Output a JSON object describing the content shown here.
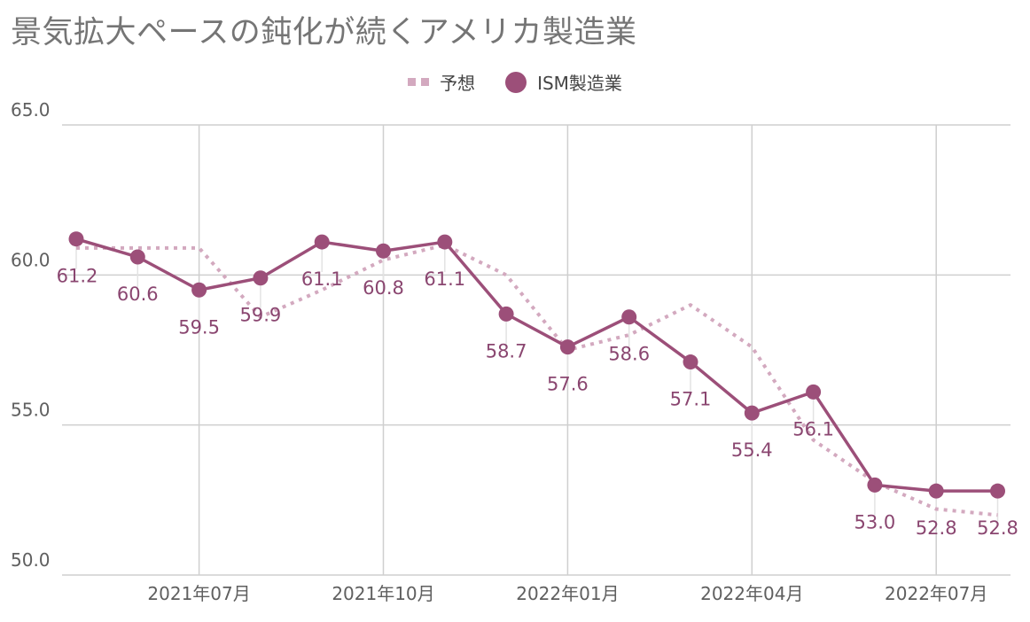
{
  "chart_data": {
    "type": "line",
    "title": "景気拡大ペースの鈍化が続くアメリカ製造業",
    "x": [
      "2021-05",
      "2021-06",
      "2021-07",
      "2021-08",
      "2021-09",
      "2021-10",
      "2021-11",
      "2021-12",
      "2022-01",
      "2022-02",
      "2022-03",
      "2022-04",
      "2022-05",
      "2022-06",
      "2022-07",
      "2022-08"
    ],
    "x_tick_labels": [
      {
        "x": "2021-07",
        "label": "2021年07月"
      },
      {
        "x": "2021-10",
        "label": "2021年10月"
      },
      {
        "x": "2022-01",
        "label": "2022年01月"
      },
      {
        "x": "2022-04",
        "label": "2022年04月"
      },
      {
        "x": "2022-07",
        "label": "2022年07月"
      }
    ],
    "y_ticks": [
      50.0,
      55.0,
      60.0,
      65.0
    ],
    "y_tick_labels": [
      "50.0",
      "55.0",
      "60.0",
      "65.0"
    ],
    "ylim": [
      50,
      65
    ],
    "grid": true,
    "legend": "top-center",
    "series": [
      {
        "name": "予想",
        "style": "dotted",
        "color": "#d3a9bf",
        "values": [
          60.9,
          60.9,
          60.9,
          58.6,
          59.5,
          60.5,
          61.0,
          60.0,
          57.5,
          58.0,
          59.0,
          57.6,
          54.5,
          53.1,
          52.2,
          52.0
        ]
      },
      {
        "name": "ISM製造業",
        "style": "solid",
        "color": "#9c4f79",
        "values": [
          61.2,
          60.6,
          59.5,
          59.9,
          61.1,
          60.8,
          61.1,
          58.7,
          57.6,
          58.6,
          57.1,
          55.4,
          56.1,
          53.0,
          52.8,
          52.8
        ],
        "data_labels": [
          "61.2",
          "60.6",
          "59.5",
          "59.9",
          "61.1",
          "60.8",
          "61.1",
          "58.7",
          "57.6",
          "58.6",
          "57.1",
          "55.4",
          "56.1",
          "53.0",
          "52.8",
          "52.8"
        ]
      }
    ]
  },
  "colors": {
    "grid": "#cfcfcf",
    "title": "#757575",
    "axis_text": "#5f5f5f",
    "label_text": "#8a4670",
    "leader": "#e3e3e3"
  }
}
